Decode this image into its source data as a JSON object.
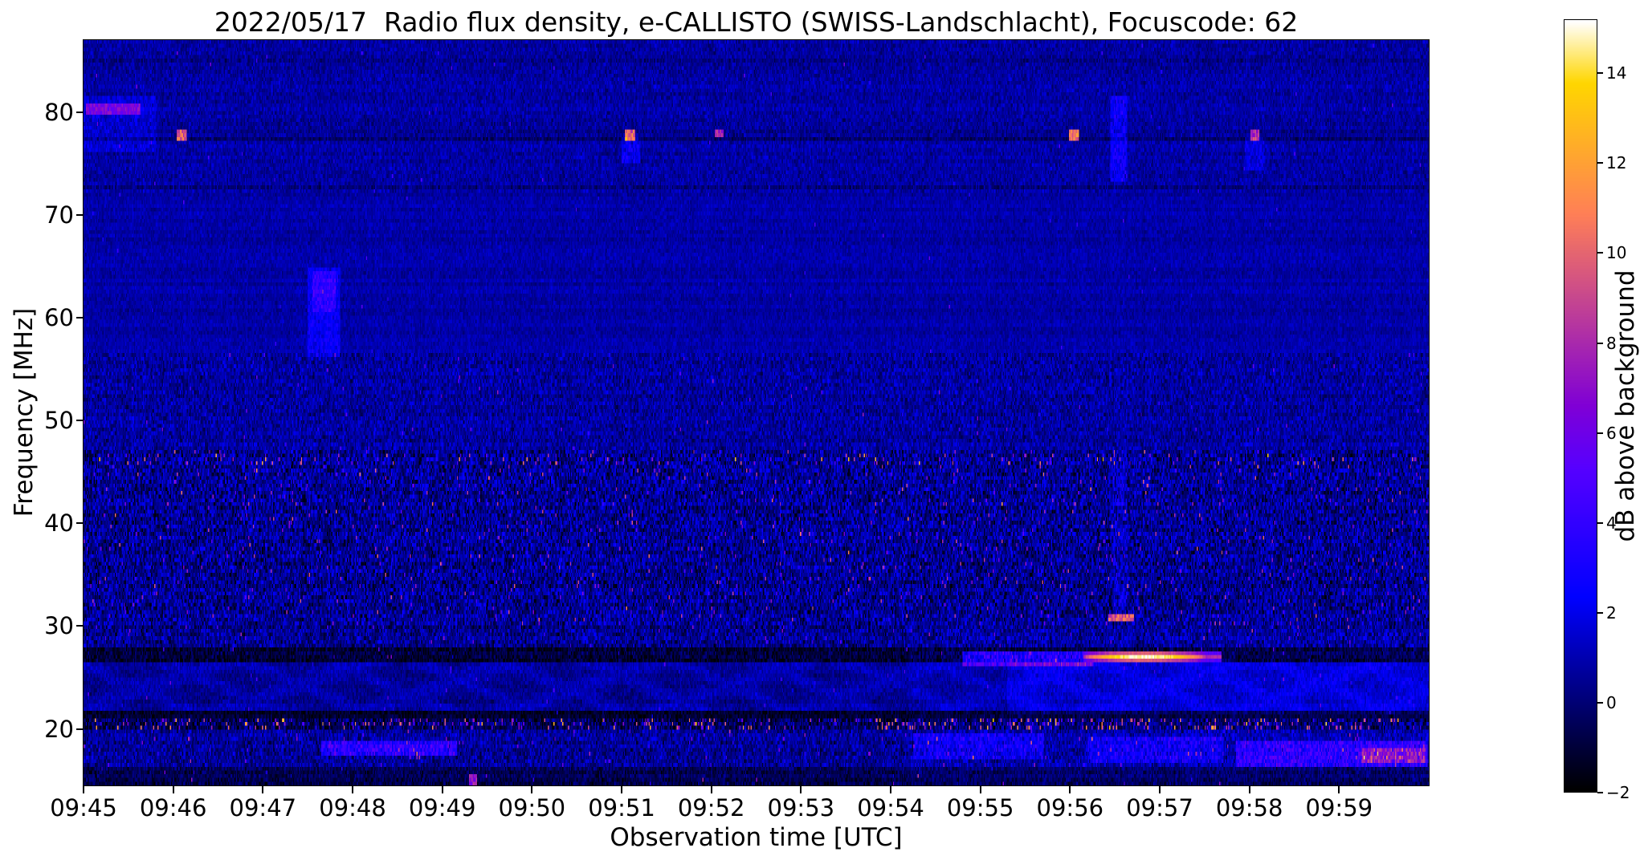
{
  "title": "2022/05/17  Radio flux density, e-CALLISTO (SWISS-Landschlacht), Focuscode: 62",
  "xlabel": "Observation time [UTC]",
  "ylabel": "Frequency [MHz]",
  "colorbar": {
    "label": "dB above background",
    "vmin": -2,
    "vmax": 15.2,
    "colormap": "gnuplot2",
    "ticks": [
      {
        "v": -2,
        "label": "−2"
      },
      {
        "v": 0,
        "label": "0"
      },
      {
        "v": 2,
        "label": "2"
      },
      {
        "v": 4,
        "label": "4"
      },
      {
        "v": 6,
        "label": "6"
      },
      {
        "v": 8,
        "label": "8"
      },
      {
        "v": 10,
        "label": "10"
      },
      {
        "v": 12,
        "label": "12"
      },
      {
        "v": 14,
        "label": "14"
      }
    ]
  },
  "chart_data": {
    "type": "heatmap",
    "date": "2022/05/17",
    "instrument": "e-CALLISTO (SWISS-Landschlacht)",
    "focuscode": 62,
    "time_start_utc": "09:45",
    "time_end_utc": "10:00",
    "duration_minutes": 15,
    "y_range": [
      14.5,
      87
    ],
    "value_range": [
      -2,
      15.2
    ],
    "x_ticks": [
      {
        "minute": 0,
        "label": "09:45"
      },
      {
        "minute": 1,
        "label": "09:46"
      },
      {
        "minute": 2,
        "label": "09:47"
      },
      {
        "minute": 3,
        "label": "09:48"
      },
      {
        "minute": 4,
        "label": "09:49"
      },
      {
        "minute": 5,
        "label": "09:50"
      },
      {
        "minute": 6,
        "label": "09:51"
      },
      {
        "minute": 7,
        "label": "09:52"
      },
      {
        "minute": 8,
        "label": "09:53"
      },
      {
        "minute": 9,
        "label": "09:54"
      },
      {
        "minute": 10,
        "label": "09:55"
      },
      {
        "minute": 11,
        "label": "09:56"
      },
      {
        "minute": 12,
        "label": "09:57"
      },
      {
        "minute": 13,
        "label": "09:58"
      },
      {
        "minute": 14,
        "label": "09:59"
      }
    ],
    "y_ticks": [
      {
        "v": 20,
        "label": "20"
      },
      {
        "v": 30,
        "label": "30"
      },
      {
        "v": 40,
        "label": "40"
      },
      {
        "v": 50,
        "label": "50"
      },
      {
        "v": 60,
        "label": "60"
      },
      {
        "v": 70,
        "label": "70"
      },
      {
        "v": 80,
        "label": "80"
      }
    ],
    "background_level_db": 0.8,
    "noise_bands": [
      {
        "f0": 72.0,
        "f1": 87.0,
        "base": 0.75,
        "sigma": 0.7,
        "spike_p": 0.0015,
        "spike_a": 3.0
      },
      {
        "f0": 56.5,
        "f1": 72.0,
        "base": 0.8,
        "sigma": 0.5,
        "spike_p": 0.001,
        "spike_a": 2.5
      },
      {
        "f0": 47.0,
        "f1": 56.5,
        "base": 0.65,
        "sigma": 1.0,
        "spike_p": 0.004,
        "spike_a": 3.5
      },
      {
        "f0": 30.0,
        "f1": 47.0,
        "base": 0.45,
        "sigma": 1.5,
        "spike_p": 0.02,
        "spike_a": 5.0
      },
      {
        "f0": 45.8,
        "f1": 46.8,
        "base": 0.45,
        "sigma": 1.6,
        "spike_p": 0.05,
        "spike_a": 6.0
      },
      {
        "f0": 28.0,
        "f1": 30.0,
        "base": 0.35,
        "sigma": 1.3,
        "spike_p": 0.01,
        "spike_a": 4.0
      },
      {
        "f0": 26.4,
        "f1": 28.0,
        "base": -1.1,
        "sigma": 0.9,
        "spike_p": 0.003,
        "spike_a": 4.0
      },
      {
        "f0": 21.8,
        "f1": 26.4,
        "base": 0.35,
        "sigma": 0.6,
        "spike_p": 0.004,
        "spike_a": 3.0,
        "wave": true
      },
      {
        "f0": 21.0,
        "f1": 21.8,
        "base": -1.3,
        "sigma": 0.7,
        "spike_p": 0.002,
        "spike_a": 4.0
      },
      {
        "f0": 19.8,
        "f1": 21.0,
        "base": -0.4,
        "sigma": 1.4,
        "spike_p": 0.1,
        "spike_a": 7.0,
        "rfi": true
      },
      {
        "f0": 16.4,
        "f1": 19.8,
        "base": 0.5,
        "sigma": 1.1,
        "spike_p": 0.012,
        "spike_a": 4.0
      },
      {
        "f0": 14.5,
        "f1": 16.4,
        "base": -0.6,
        "sigma": 0.8,
        "spike_p": 0.004,
        "spike_a": 5.0
      }
    ],
    "dark_lines": [
      {
        "f": 77.3,
        "w": 0.5,
        "d": -0.9
      },
      {
        "f": 78.05,
        "w": 0.6,
        "d": -0.35
      },
      {
        "f": 72.65,
        "w": 0.45,
        "d": -0.8
      },
      {
        "f": 85.0,
        "w": 0.4,
        "d": -0.5
      }
    ],
    "late_boost": {
      "t": 9.2,
      "f_below": 30,
      "db": 0.35
    },
    "features": [
      {
        "kind": "add",
        "t0": 0.0,
        "t1": 0.8,
        "f0": 76.5,
        "f1": 81.5,
        "db": 0.9,
        "note": "purple haze top-left 09:45"
      },
      {
        "kind": "dash",
        "t0": 0.02,
        "t1": 0.62,
        "f0": 80.25,
        "f1": 80.95,
        "db": 6.3,
        "note": "narrowband emission 80.5 MHz at 09:45"
      },
      {
        "kind": "dash",
        "t0": 1.04,
        "t1": 1.14,
        "f0": 77.75,
        "f1": 78.4,
        "db": 9.5,
        "note": "point burst 78 MHz 09:46"
      },
      {
        "kind": "dash",
        "t0": 6.04,
        "t1": 6.14,
        "f0": 77.7,
        "f1": 78.45,
        "db": 10.0,
        "note": "point burst 78 MHz 09:51"
      },
      {
        "kind": "add",
        "t0": 6.0,
        "t1": 6.2,
        "f0": 75.5,
        "f1": 77.6,
        "db": 1.3,
        "note": "faint tail below 09:51 burst"
      },
      {
        "kind": "dash",
        "t0": 7.04,
        "t1": 7.12,
        "f0": 77.8,
        "f1": 78.35,
        "db": 7.8,
        "note": "point burst 78 MHz 09:52"
      },
      {
        "kind": "dash",
        "t0": 10.99,
        "t1": 11.09,
        "f0": 77.7,
        "f1": 78.45,
        "db": 10.5,
        "note": "point burst 78 MHz 09:56"
      },
      {
        "kind": "dash",
        "t0": 13.01,
        "t1": 13.1,
        "f0": 77.75,
        "f1": 78.35,
        "db": 8.2,
        "note": "point burst 78 MHz 09:58"
      },
      {
        "kind": "add",
        "t0": 12.95,
        "t1": 13.15,
        "f0": 74.5,
        "f1": 77.6,
        "db": 1.1,
        "note": "faint vertical smear 09:58"
      },
      {
        "kind": "add",
        "t0": 2.5,
        "t1": 2.85,
        "f0": 56.5,
        "f1": 65.0,
        "db": 1.5,
        "note": "faint drifting structure 09:47.6"
      },
      {
        "kind": "add",
        "t0": 2.55,
        "t1": 2.8,
        "f0": 61.0,
        "f1": 64.6,
        "db": 1.5,
        "note": "core of 09:47.6 structure"
      },
      {
        "kind": "add",
        "t0": 11.45,
        "t1": 11.62,
        "f0": 73.5,
        "f1": 81.5,
        "db": 1.7,
        "note": "faint vertical streak 09:56.5 high band"
      },
      {
        "kind": "add",
        "t0": 11.48,
        "t1": 11.62,
        "f0": 31.5,
        "f1": 47.0,
        "db": 0.8,
        "note": "faint vertical streak 09:56.5 mid band"
      },
      {
        "kind": "dash",
        "t0": 11.42,
        "t1": 11.7,
        "f0": 30.75,
        "f1": 31.3,
        "db": 9.8,
        "note": "bright dash 31 MHz 09:56.6"
      },
      {
        "kind": "add",
        "t0": 9.8,
        "t1": 11.25,
        "f0": 26.6,
        "f1": 27.5,
        "db": 4.0,
        "note": "onset of 27 MHz emission 09:55"
      },
      {
        "kind": "streak",
        "t0": 11.15,
        "t1": 12.68,
        "f0": 26.65,
        "f1": 27.4,
        "db": 15.0,
        "note": "intense yellow-white streak 27 MHz 09:56-09:58"
      },
      {
        "kind": "add",
        "t0": 2.65,
        "t1": 4.15,
        "f0": 17.7,
        "f1": 18.7,
        "db": 3.1,
        "note": "pink streak 18 MHz around 09:48"
      },
      {
        "kind": "add",
        "t0": 9.25,
        "t1": 10.7,
        "f0": 17.3,
        "f1": 19.6,
        "db": 1.6,
        "note": "enhanced mottling 09:54-09:55"
      },
      {
        "kind": "add",
        "t0": 11.2,
        "t1": 12.7,
        "f0": 16.9,
        "f1": 19.3,
        "db": 1.7,
        "note": "enhanced mottling 09:56-09:57"
      },
      {
        "kind": "add",
        "t0": 12.85,
        "t1": 14.98,
        "f0": 16.6,
        "f1": 18.9,
        "db": 2.9,
        "note": "broad pink patch bottom-right 09:58-10:00"
      },
      {
        "kind": "add",
        "t0": 14.25,
        "t1": 14.95,
        "f0": 17.0,
        "f1": 18.3,
        "db": 3.4,
        "note": "hotspot in bottom-right patch"
      },
      {
        "kind": "dash",
        "t0": 4.3,
        "t1": 4.38,
        "f0": 14.9,
        "f1": 15.5,
        "db": 7.2,
        "note": "isolated dot 15 MHz 09:49.3"
      },
      {
        "kind": "add",
        "t0": 10.3,
        "t1": 15.0,
        "f0": 21.8,
        "f1": 26.4,
        "db": 0.7,
        "note": "brighter wavy band late interval"
      }
    ]
  }
}
